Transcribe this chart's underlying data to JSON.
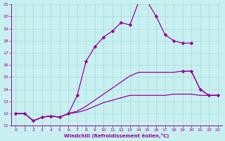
{
  "xlabel": "Windchill (Refroidissement éolien,°C)",
  "background_color": "#c8f0f0",
  "grid_color": "#a8d8d8",
  "line_color": "#990099",
  "xlim": [
    -0.5,
    23.5
  ],
  "ylim": [
    11,
    21
  ],
  "xticks": [
    0,
    1,
    2,
    3,
    4,
    5,
    6,
    7,
    8,
    9,
    10,
    11,
    12,
    13,
    14,
    15,
    16,
    17,
    18,
    19,
    20,
    21,
    22,
    23
  ],
  "yticks": [
    11,
    12,
    13,
    14,
    15,
    16,
    17,
    18,
    19,
    20,
    21
  ],
  "line1_x": [
    0,
    1,
    2,
    3,
    4,
    5,
    6,
    7,
    8,
    9,
    10,
    11,
    12,
    13,
    14,
    15,
    16,
    17,
    18,
    19,
    20
  ],
  "line1_y": [
    12.0,
    12.0,
    11.4,
    11.7,
    11.8,
    11.7,
    12.0,
    13.5,
    16.3,
    17.5,
    18.3,
    18.8,
    19.5,
    19.3,
    21.2,
    21.2,
    20.0,
    18.5,
    18.0,
    17.8,
    17.8
  ],
  "line2_x": [
    0,
    1,
    2,
    3,
    4,
    5,
    6,
    7,
    8,
    9,
    10,
    11,
    12,
    13,
    14,
    15,
    16,
    17,
    18,
    19,
    20,
    21,
    22,
    23
  ],
  "line2_y": [
    12.0,
    12.0,
    11.4,
    11.7,
    11.8,
    11.7,
    12.0,
    12.2,
    12.6,
    13.1,
    13.6,
    14.1,
    14.6,
    15.1,
    15.4,
    15.4,
    15.4,
    15.4,
    15.4,
    15.5,
    15.5,
    14.0,
    13.5,
    13.5
  ],
  "line3_x": [
    0,
    1,
    2,
    3,
    4,
    5,
    6,
    7,
    8,
    9,
    10,
    11,
    12,
    13,
    14,
    15,
    16,
    17,
    18,
    19,
    20,
    21,
    22,
    23
  ],
  "line3_y": [
    12.0,
    12.0,
    11.4,
    11.7,
    11.8,
    11.7,
    12.0,
    12.1,
    12.3,
    12.6,
    12.9,
    13.1,
    13.3,
    13.5,
    13.5,
    13.5,
    13.5,
    13.5,
    13.6,
    13.6,
    13.6,
    13.5,
    13.5,
    13.5
  ],
  "markers_x": [
    0,
    1,
    2,
    3,
    4,
    5,
    6,
    7,
    8,
    9,
    10,
    11,
    12,
    13,
    14,
    15,
    16,
    17,
    18,
    19,
    20,
    19,
    20,
    21,
    22,
    23
  ],
  "markers1_x": [
    0,
    1,
    2,
    3,
    4,
    5,
    6,
    7,
    8,
    9,
    10,
    11,
    12,
    13,
    14,
    15,
    16,
    17,
    18,
    19,
    20
  ],
  "markers1_y": [
    12.0,
    12.0,
    11.4,
    11.7,
    11.8,
    11.7,
    12.0,
    13.5,
    16.3,
    17.5,
    18.3,
    18.8,
    19.5,
    19.3,
    21.2,
    21.2,
    20.0,
    18.5,
    18.0,
    17.8,
    17.8
  ],
  "markers2_x": [
    19,
    20,
    21,
    22,
    23
  ],
  "markers2_y": [
    15.5,
    15.5,
    14.0,
    13.5,
    13.5
  ]
}
